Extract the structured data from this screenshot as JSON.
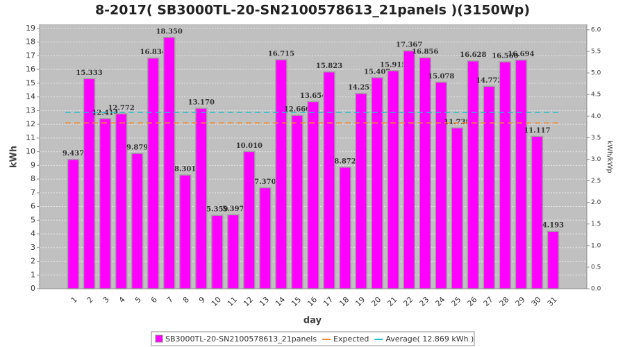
{
  "chart_data": {
    "type": "bar",
    "title": "8-2017( SB3000TL-20-SN2100578613_21panels )(3150Wp)",
    "xlabel": "day",
    "ylabel": "kWh",
    "y2label": "kWh/kWp",
    "categories": [
      "1",
      "2",
      "3",
      "4",
      "5",
      "6",
      "7",
      "8",
      "9",
      "10",
      "11",
      "12",
      "13",
      "14",
      "15",
      "16",
      "17",
      "18",
      "19",
      "20",
      "21",
      "22",
      "23",
      "24",
      "25",
      "26",
      "27",
      "28",
      "29",
      "30",
      "31"
    ],
    "series": [
      {
        "name": "SB3000TL-20-SN2100578613_21panels",
        "color": "#ff00ff",
        "values": [
          9.437,
          15.333,
          12.414,
          12.772,
          9.879,
          16.834,
          18.35,
          8.301,
          13.17,
          5.359,
          5.397,
          10.01,
          7.37,
          16.715,
          12.66,
          13.654,
          15.823,
          8.872,
          14.251,
          15.407,
          15.915,
          17.367,
          16.856,
          15.078,
          11.738,
          16.628,
          14.772,
          16.56,
          16.694,
          11.117,
          4.193
        ],
        "value_labels": [
          "9.437",
          "15.333",
          "12.414",
          "12.772",
          "9.879",
          "16.834",
          "18.350",
          "8.301",
          "13.170",
          "5.359",
          "5.397",
          "10.010",
          "7.370",
          "16.715",
          "12.660",
          "13.654",
          "15.823",
          "8.872",
          "14.251",
          "15.407",
          "15.915",
          "17.367",
          "16.856",
          "15.078",
          "11.738",
          "16.628",
          "14.772",
          "16.560",
          "16.694",
          "11.117",
          "4.193"
        ]
      }
    ],
    "lines": [
      {
        "name": "Expected",
        "color": "#f08a30",
        "value": 12.1
      },
      {
        "name": "Average( 12.869 kWh )",
        "color": "#20c0d0",
        "value": 12.869
      }
    ],
    "ylim": [
      0,
      19.3
    ],
    "yticks": [
      0,
      1,
      2,
      3,
      4,
      5,
      6,
      7,
      8,
      9,
      10,
      11,
      12,
      13,
      14,
      15,
      16,
      17,
      18,
      19
    ],
    "y2lim": [
      0,
      6.127
    ],
    "y2ticks": [
      {
        "value": 0,
        "label": "0.0"
      },
      {
        "value": 0.5,
        "label": "0.5"
      },
      {
        "value": 1,
        "label": "1.0"
      },
      {
        "value": 1.5,
        "label": "1.5"
      },
      {
        "value": 2,
        "label": "2.0"
      },
      {
        "value": 2.5,
        "label": "2.5"
      },
      {
        "value": 3,
        "label": "3.0"
      },
      {
        "value": 3.5,
        "label": "3.5"
      },
      {
        "value": 4,
        "label": "4.0"
      },
      {
        "value": 4.5,
        "label": "4.5"
      },
      {
        "value": 5,
        "label": "5.0"
      },
      {
        "value": 5.5,
        "label": "5.5"
      },
      {
        "value": 6,
        "label": "6.0"
      }
    ],
    "grid": true
  }
}
